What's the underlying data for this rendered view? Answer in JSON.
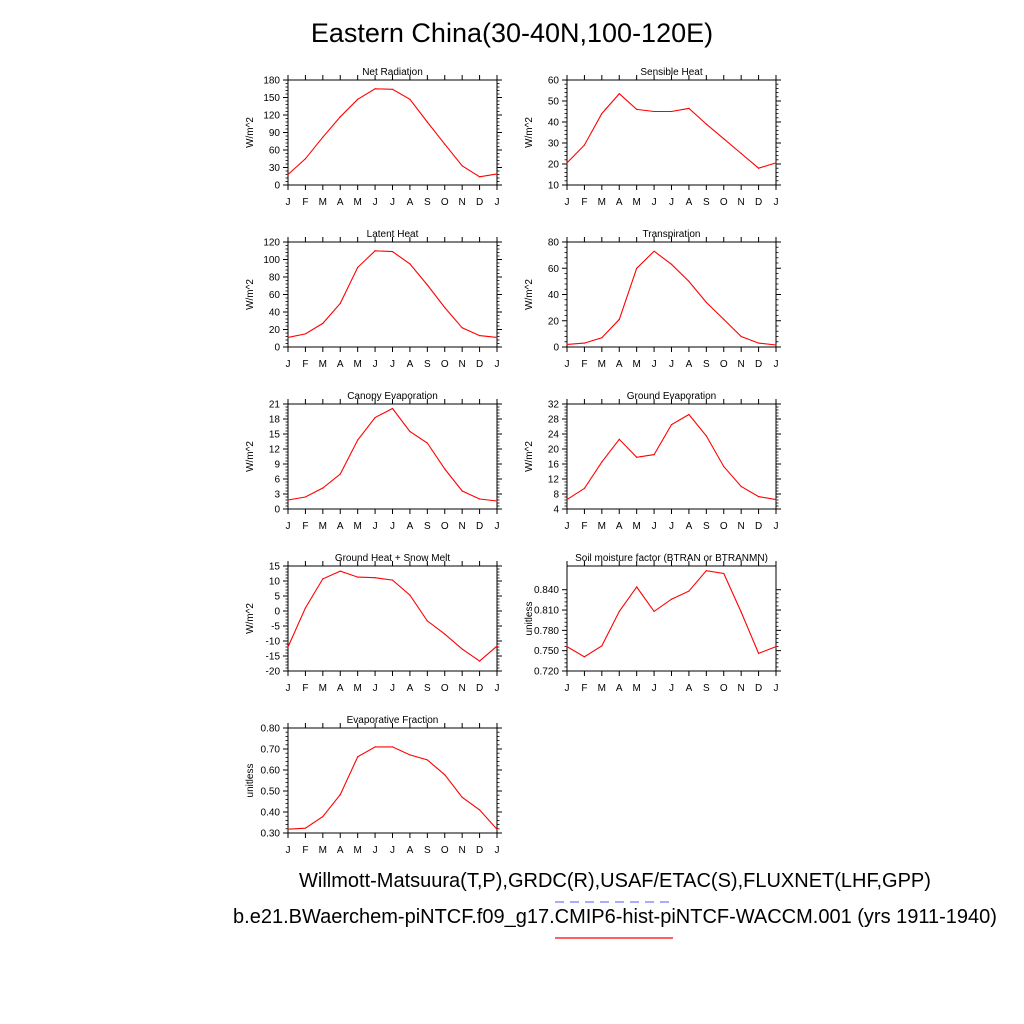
{
  "figure": {
    "title": "Eastern China(30-40N,100-120E)",
    "legend_line1": "Willmott-Matsuura(T,P),GRDC(R),USAF/ETAC(S),FLUXNET(LHF,GPP)",
    "legend_line2": "b.e21.BWaerchem-piNTCF.f09_g17.CMIP6-hist-piNTCF-WACCM.001 (yrs 1911-1940)",
    "obs_line_color": "#7777ff",
    "model_line_color": "#ff0000"
  },
  "chart_data": [
    {
      "type": "line",
      "title": "Net Radiation",
      "ylabel": "W/m^2",
      "categories": [
        "J",
        "F",
        "M",
        "A",
        "M",
        "J",
        "J",
        "A",
        "S",
        "O",
        "N",
        "D",
        "J"
      ],
      "ylim": [
        0,
        180
      ],
      "yticks": [
        "0",
        "30",
        "60",
        "90",
        "120",
        "150",
        "180"
      ],
      "series": [
        {
          "values": [
            18,
            45,
            82,
            117,
            147,
            165,
            164,
            147,
            108,
            70,
            33,
            14,
            19
          ],
          "color": "#ff0000"
        }
      ]
    },
    {
      "type": "line",
      "title": "Sensible Heat",
      "ylabel": "W/m^2",
      "categories": [
        "J",
        "F",
        "M",
        "A",
        "M",
        "J",
        "J",
        "A",
        "S",
        "O",
        "N",
        "D",
        "J"
      ],
      "ylim": [
        10,
        60
      ],
      "yticks": [
        "10",
        "20",
        "30",
        "40",
        "50",
        "60"
      ],
      "series": [
        {
          "values": [
            20.5,
            29,
            44,
            53.5,
            46,
            45,
            45,
            46.5,
            39,
            32,
            25,
            18,
            20.5
          ],
          "color": "#ff0000"
        }
      ]
    },
    {
      "type": "line",
      "title": "Latent Heat",
      "ylabel": "W/m^2",
      "categories": [
        "J",
        "F",
        "M",
        "A",
        "M",
        "J",
        "J",
        "A",
        "S",
        "O",
        "N",
        "D",
        "J"
      ],
      "ylim": [
        0,
        120
      ],
      "yticks": [
        "0",
        "20",
        "40",
        "60",
        "80",
        "100",
        "120"
      ],
      "series": [
        {
          "values": [
            11,
            15,
            27,
            50,
            91,
            110,
            109,
            95,
            71,
            45,
            22,
            13,
            11
          ],
          "color": "#ff0000"
        }
      ]
    },
    {
      "type": "line",
      "title": "Transpiration",
      "ylabel": "W/m^2",
      "categories": [
        "J",
        "F",
        "M",
        "A",
        "M",
        "J",
        "J",
        "A",
        "S",
        "O",
        "N",
        "D",
        "J"
      ],
      "ylim": [
        0,
        80
      ],
      "yticks": [
        "0",
        "20",
        "40",
        "60",
        "80"
      ],
      "series": [
        {
          "values": [
            2,
            3,
            7,
            21,
            60,
            73,
            63,
            50,
            34,
            21,
            8,
            3,
            1.5
          ],
          "color": "#ff0000"
        }
      ]
    },
    {
      "type": "line",
      "title": "Canopy Evaporation",
      "ylabel": "W/m^2",
      "categories": [
        "J",
        "F",
        "M",
        "A",
        "M",
        "J",
        "J",
        "A",
        "S",
        "O",
        "N",
        "D",
        "J"
      ],
      "ylim": [
        0,
        21
      ],
      "yticks": [
        "0",
        "3",
        "6",
        "9",
        "12",
        "15",
        "18",
        "21"
      ],
      "series": [
        {
          "values": [
            1.8,
            2.4,
            4.2,
            7.0,
            13.8,
            18.3,
            20.1,
            15.5,
            13.2,
            8.0,
            3.6,
            2.0,
            1.6
          ],
          "color": "#ff0000"
        }
      ]
    },
    {
      "type": "line",
      "title": "Ground Evaporation",
      "ylabel": "W/m^2",
      "categories": [
        "J",
        "F",
        "M",
        "A",
        "M",
        "J",
        "J",
        "A",
        "S",
        "O",
        "N",
        "D",
        "J"
      ],
      "ylim": [
        4,
        32
      ],
      "yticks": [
        "4",
        "8",
        "12",
        "16",
        "20",
        "24",
        "28",
        "32"
      ],
      "series": [
        {
          "values": [
            6.5,
            9.5,
            16.5,
            22.6,
            17.8,
            18.5,
            26.5,
            29.2,
            23.5,
            15.3,
            10.0,
            7.3,
            6.5
          ],
          "color": "#ff0000"
        }
      ]
    },
    {
      "type": "line",
      "title": "Ground Heat + Snow Melt",
      "ylabel": "W/m^2",
      "categories": [
        "J",
        "F",
        "M",
        "A",
        "M",
        "J",
        "J",
        "A",
        "S",
        "O",
        "N",
        "D",
        "J"
      ],
      "ylim": [
        -20,
        15
      ],
      "yticks": [
        "-20",
        "-15",
        "-10",
        "-5",
        "0",
        "5",
        "10",
        "15"
      ],
      "series": [
        {
          "values": [
            -12,
            1,
            10.7,
            13.3,
            11.3,
            11.1,
            10.3,
            5.3,
            -3.3,
            -7.7,
            -12.7,
            -16.7,
            -11.7
          ],
          "color": "#ff0000"
        }
      ]
    },
    {
      "type": "line",
      "title": "Soil moisture factor (BTRAN or BTRANMN)",
      "ylabel": "unitless",
      "categories": [
        "J",
        "F",
        "M",
        "A",
        "M",
        "J",
        "J",
        "A",
        "S",
        "O",
        "N",
        "D",
        "J"
      ],
      "ylim": [
        0.72,
        0.875
      ],
      "yticks": [
        "0.720",
        "0.750",
        "0.780",
        "0.810",
        "0.840"
      ],
      "ytick_values": [
        0.72,
        0.75,
        0.78,
        0.81,
        0.84
      ],
      "series": [
        {
          "values": [
            0.756,
            0.741,
            0.757,
            0.808,
            0.844,
            0.808,
            0.826,
            0.838,
            0.868,
            0.864,
            0.807,
            0.746,
            0.756
          ],
          "color": "#ff0000"
        }
      ]
    },
    {
      "type": "line",
      "title": "Evaporative Fraction",
      "ylabel": "unitless",
      "categories": [
        "J",
        "F",
        "M",
        "A",
        "M",
        "J",
        "J",
        "A",
        "S",
        "O",
        "N",
        "D",
        "J"
      ],
      "ylim": [
        0.3,
        0.8
      ],
      "yticks": [
        "0.30",
        "0.40",
        "0.50",
        "0.60",
        "0.70",
        "0.80"
      ],
      "series": [
        {
          "values": [
            0.318,
            0.323,
            0.378,
            0.483,
            0.663,
            0.71,
            0.71,
            0.672,
            0.648,
            0.577,
            0.47,
            0.41,
            0.318
          ],
          "color": "#ff0000"
        }
      ]
    }
  ]
}
